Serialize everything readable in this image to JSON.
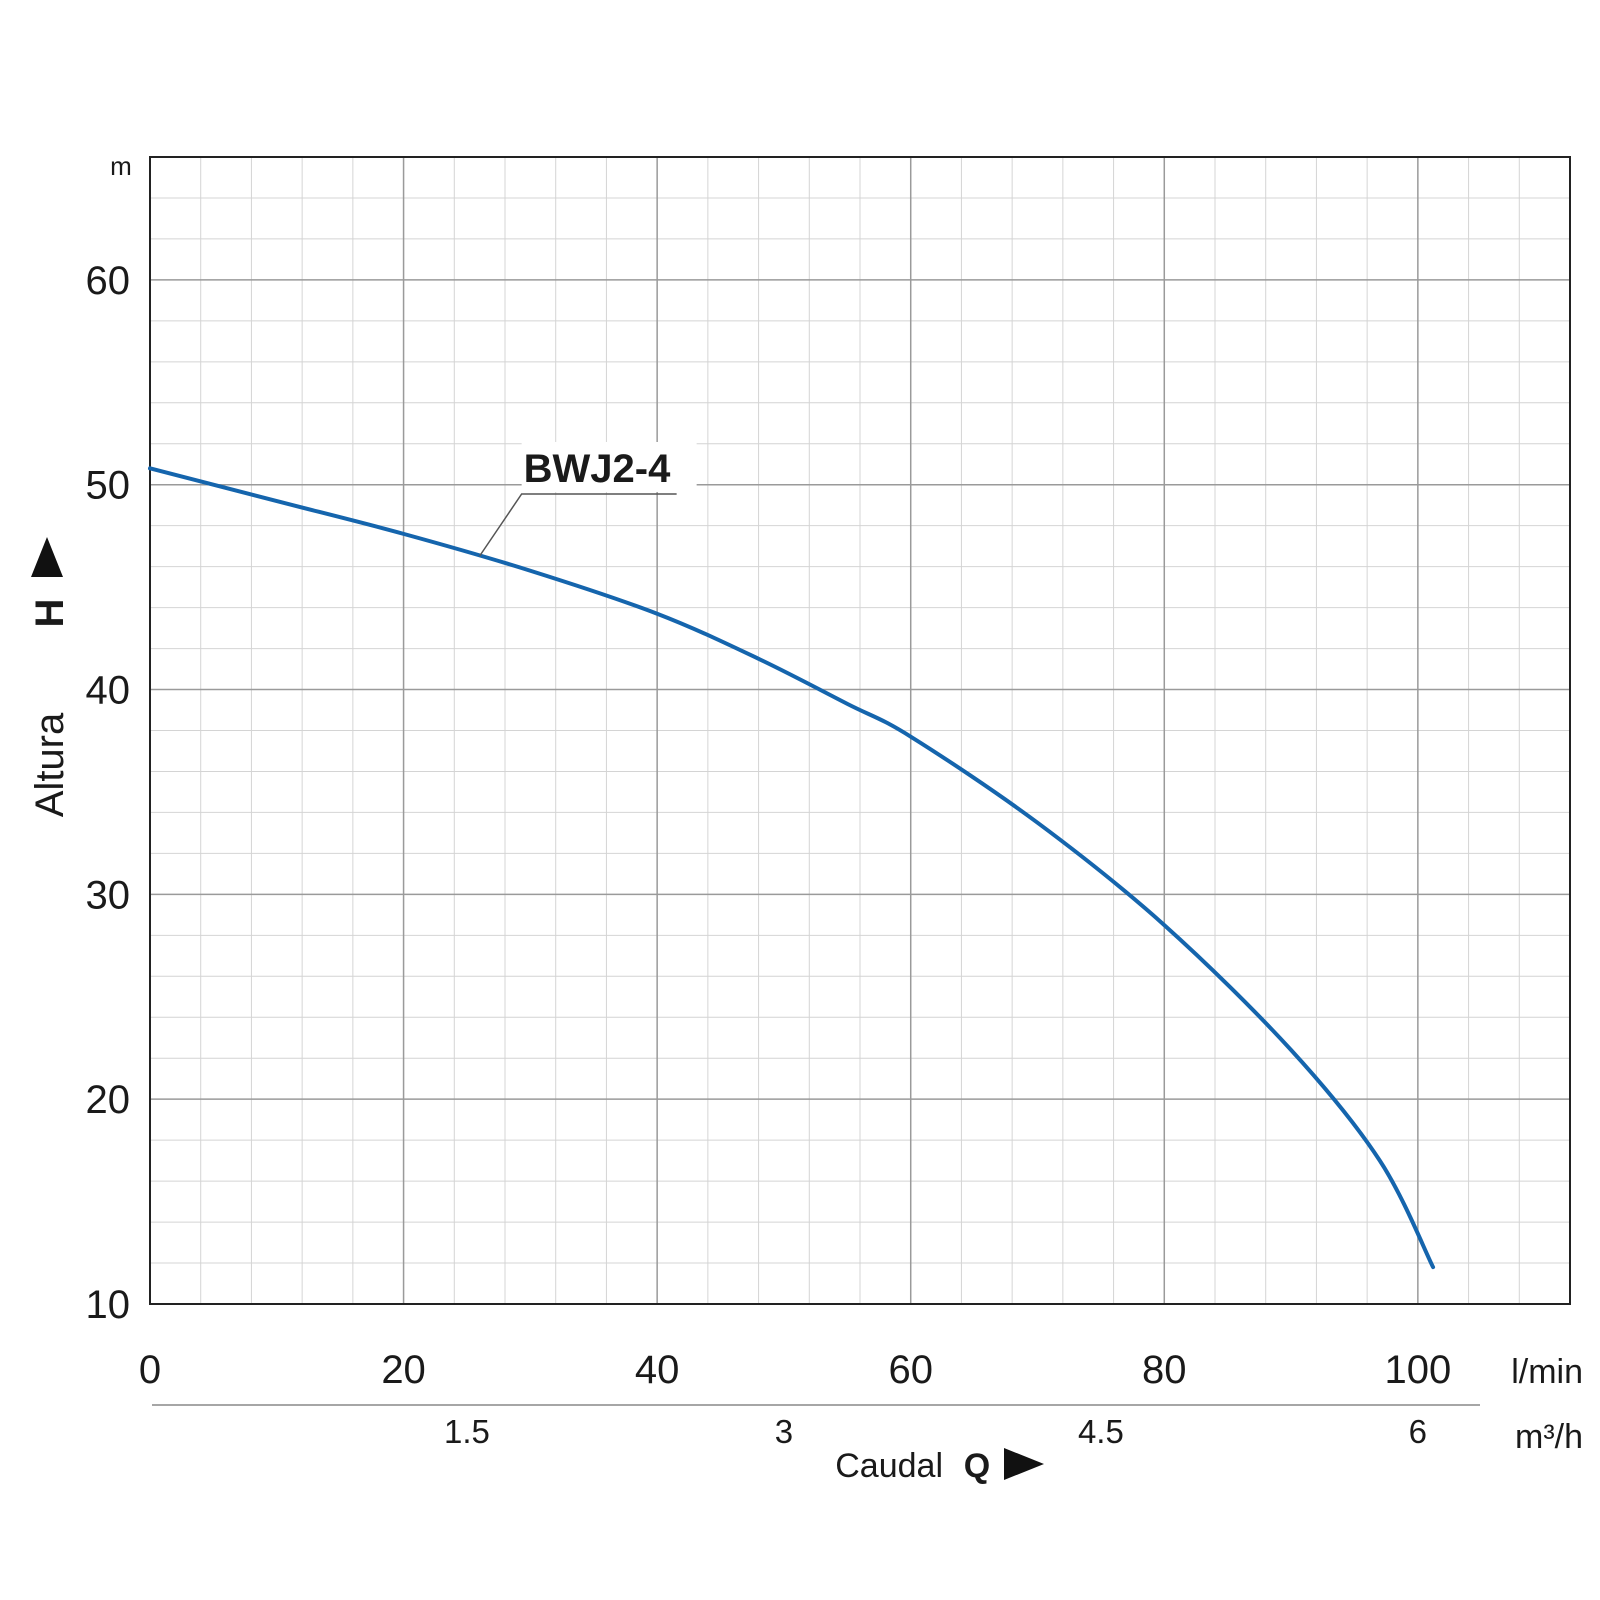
{
  "chart_data": {
    "type": "line",
    "ylabel": "Altura",
    "ylabel_symbol": "H",
    "y_unit": "m",
    "xlabel": "Caudal",
    "xlabel_symbol": "Q",
    "x_unit": "l/min",
    "x2_unit": "m³/h",
    "xlim": [
      0,
      112
    ],
    "ylim": [
      10,
      66
    ],
    "x_ticks": [
      "0",
      "20",
      "40",
      "60",
      "80",
      "100"
    ],
    "x2_ticks": [
      "1.5",
      "3",
      "4.5",
      "6"
    ],
    "x2_tick_values_lmin": [
      25,
      50,
      75,
      100
    ],
    "y_ticks": [
      "10",
      "20",
      "30",
      "40",
      "50",
      "60"
    ],
    "grid": true,
    "series": [
      {
        "name": "BWJ2-4",
        "color": "#1565ad",
        "x": [
          0,
          10,
          20,
          30,
          40,
          48,
          55,
          60,
          70,
          80,
          90,
          97,
          101.2
        ],
        "y": [
          50.8,
          49.2,
          47.6,
          45.8,
          43.7,
          41.5,
          39.3,
          37.7,
          33.5,
          28.5,
          22.4,
          17.0,
          11.8
        ]
      }
    ],
    "label_anchor_x": 26
  }
}
